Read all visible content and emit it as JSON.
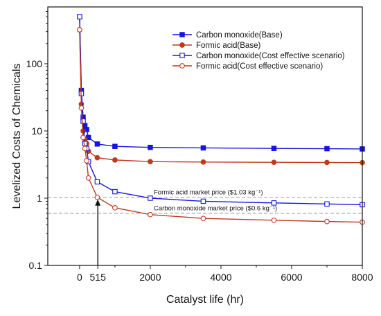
{
  "chart_data": {
    "type": "line",
    "xlabel": "Catalyst life (hr)",
    "ylabel": "Levelized Costs of Chemicals",
    "xlim": [
      -900,
      8000
    ],
    "ylim": [
      0.1,
      700
    ],
    "yscale": "log",
    "xticks": [
      0,
      515,
      2000,
      4000,
      6000,
      8000
    ],
    "xtick_labels": [
      "0",
      "515",
      "2000",
      "4000",
      "6000",
      "8000"
    ],
    "yticks": [
      0.1,
      1,
      10,
      100
    ],
    "ytick_labels": [
      "0.1",
      "1",
      "10",
      "100"
    ],
    "legend_position": "top-right",
    "series": [
      {
        "name": "Carbon monoxide(Base)",
        "color": "#1515e0",
        "marker": "square",
        "filled": true,
        "x": [
          0,
          50,
          100,
          150,
          200,
          250,
          500,
          1000,
          2000,
          3500,
          5500,
          7000,
          8000
        ],
        "y": [
          500,
          40,
          16,
          12,
          10.5,
          8,
          6.4,
          5.9,
          5.7,
          5.6,
          5.5,
          5.45,
          5.4
        ]
      },
      {
        "name": "Formic acid(Base)",
        "color": "#c0391f",
        "marker": "circle",
        "filled": true,
        "x": [
          0,
          50,
          100,
          150,
          200,
          250,
          500,
          1000,
          2000,
          3500,
          5500,
          7000,
          8000
        ],
        "y": [
          320,
          25,
          10,
          7.5,
          6.5,
          5,
          4,
          3.7,
          3.5,
          3.45,
          3.42,
          3.4,
          3.38
        ]
      },
      {
        "name": "Carbon monoxide(Cost effective scenario)",
        "color": "#1515e0",
        "marker": "square",
        "filled": false,
        "x": [
          0,
          50,
          100,
          150,
          200,
          250,
          500,
          1000,
          2000,
          3500,
          5500,
          7000,
          8000
        ],
        "y": [
          500,
          36,
          14,
          6.5,
          5.5,
          3.5,
          1.75,
          1.25,
          1.0,
          0.9,
          0.85,
          0.82,
          0.8
        ]
      },
      {
        "name": "Formic acid(Cost effective scenario)",
        "color": "#c0391f",
        "marker": "circle",
        "filled": false,
        "x": [
          0,
          50,
          100,
          150,
          200,
          250,
          500,
          1000,
          2000,
          3500,
          5500,
          7000,
          8000
        ],
        "y": [
          320,
          22,
          8,
          5.5,
          3.6,
          2.0,
          1.03,
          0.72,
          0.57,
          0.5,
          0.47,
          0.45,
          0.44
        ]
      }
    ],
    "reference_lines": [
      {
        "label": "Formic acid market price ($1.03 kg⁻¹)",
        "y": 1.03,
        "color": "#9a9a9a"
      },
      {
        "label": "Carbon monoxide market price ($0.6 kg⁻¹)",
        "y": 0.6,
        "color": "#9a9a9a"
      }
    ],
    "arrow": {
      "x": 515,
      "y_from": 0.1,
      "y_to": 1.03
    }
  }
}
